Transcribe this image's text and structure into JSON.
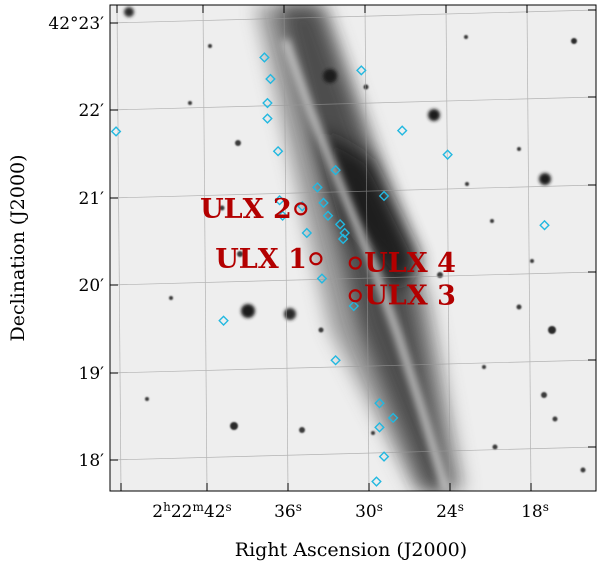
{
  "chart_data": {
    "type": "scatter",
    "title": "",
    "xlabel": "Right Ascension (J2000)",
    "ylabel": "Declination (J2000)",
    "x_ticks": [
      {
        "label": "2h22m42s",
        "parts": [
          "2",
          "h",
          "22",
          "m",
          "42",
          "s"
        ],
        "ra_sec": 42
      },
      {
        "label": "36s",
        "parts": [
          "36",
          "s"
        ],
        "ra_sec": 36
      },
      {
        "label": "30s",
        "parts": [
          "30",
          "s"
        ],
        "ra_sec": 30
      },
      {
        "label": "24s",
        "parts": [
          "24",
          "s"
        ],
        "ra_sec": 24
      },
      {
        "label": "18s",
        "parts": [
          "18",
          "s"
        ],
        "ra_sec": 18
      }
    ],
    "y_ticks": [
      {
        "label": "42°23′",
        "arcmin": 23
      },
      {
        "label": "22′",
        "arcmin": 22
      },
      {
        "label": "21′",
        "arcmin": 21
      },
      {
        "label": "20′",
        "arcmin": 20
      },
      {
        "label": "19′",
        "arcmin": 19
      },
      {
        "label": "18′",
        "arcmin": 18
      }
    ],
    "xlim_ra_sec": [
      46.4,
      14.3
    ],
    "ylim_arcmin": [
      17.55,
      23.2
    ],
    "grid": true,
    "ulx_sources": [
      {
        "name": "ULX 1",
        "ra_sec": 32.8,
        "dec_arcmin": 20.25,
        "label_side": "left"
      },
      {
        "name": "ULX 2",
        "ra_sec": 33.8,
        "dec_arcmin": 20.83,
        "label_side": "left"
      },
      {
        "name": "ULX 3",
        "ra_sec": 30.2,
        "dec_arcmin": 19.82,
        "label_side": "right"
      },
      {
        "name": "ULX 4",
        "ra_sec": 30.2,
        "dec_arcmin": 20.2,
        "label_side": "right"
      }
    ],
    "catalog_sources": [
      {
        "ra_sec": 46.0,
        "dec_arcmin": 21.73
      },
      {
        "ra_sec": 36.2,
        "dec_arcmin": 22.59
      },
      {
        "ra_sec": 35.8,
        "dec_arcmin": 22.34
      },
      {
        "ra_sec": 36.0,
        "dec_arcmin": 22.06
      },
      {
        "ra_sec": 36.0,
        "dec_arcmin": 21.88
      },
      {
        "ra_sec": 29.8,
        "dec_arcmin": 22.44
      },
      {
        "ra_sec": 27.1,
        "dec_arcmin": 21.74
      },
      {
        "ra_sec": 24.1,
        "dec_arcmin": 21.46
      },
      {
        "ra_sec": 35.3,
        "dec_arcmin": 21.5
      },
      {
        "ra_sec": 31.5,
        "dec_arcmin": 21.28
      },
      {
        "ra_sec": 32.7,
        "dec_arcmin": 21.08
      },
      {
        "ra_sec": 28.3,
        "dec_arcmin": 20.98
      },
      {
        "ra_sec": 35.2,
        "dec_arcmin": 20.93
      },
      {
        "ra_sec": 33.7,
        "dec_arcmin": 20.86
      },
      {
        "ra_sec": 32.3,
        "dec_arcmin": 20.9
      },
      {
        "ra_sec": 35.0,
        "dec_arcmin": 20.75
      },
      {
        "ra_sec": 32.0,
        "dec_arcmin": 20.75
      },
      {
        "ra_sec": 31.2,
        "dec_arcmin": 20.65
      },
      {
        "ra_sec": 33.4,
        "dec_arcmin": 20.55
      },
      {
        "ra_sec": 30.9,
        "dec_arcmin": 20.55
      },
      {
        "ra_sec": 31.0,
        "dec_arcmin": 20.48
      },
      {
        "ra_sec": 17.7,
        "dec_arcmin": 20.64
      },
      {
        "ra_sec": 32.4,
        "dec_arcmin": 20.02
      },
      {
        "ra_sec": 30.3,
        "dec_arcmin": 19.7
      },
      {
        "ra_sec": 38.9,
        "dec_arcmin": 19.53
      },
      {
        "ra_sec": 31.5,
        "dec_arcmin": 19.07
      },
      {
        "ra_sec": 28.6,
        "dec_arcmin": 18.57
      },
      {
        "ra_sec": 27.7,
        "dec_arcmin": 18.4
      },
      {
        "ra_sec": 28.6,
        "dec_arcmin": 18.29
      },
      {
        "ra_sec": 28.3,
        "dec_arcmin": 17.95
      },
      {
        "ra_sec": 28.8,
        "dec_arcmin": 17.66
      }
    ],
    "colors": {
      "ulx": "#b30000",
      "catalog": "#22b8e0",
      "grid": "#9a9a9a",
      "background_sky": "#eeeeee"
    }
  }
}
